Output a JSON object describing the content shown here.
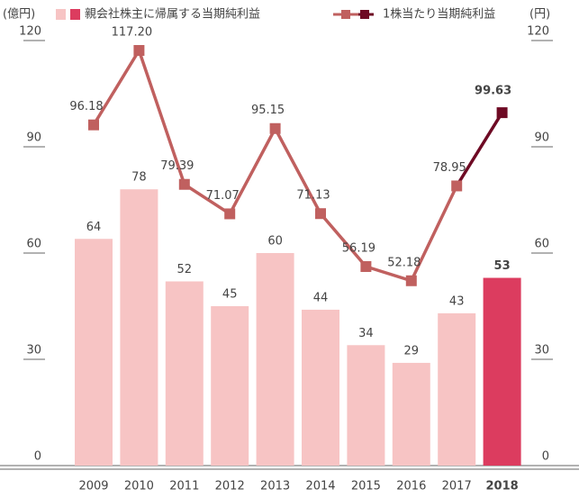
{
  "chart_data": {
    "type": "bar-line",
    "legend_unit_left": "(億円)",
    "legend_unit_right": "(円)",
    "categories": [
      "2009",
      "2010",
      "2011",
      "2012",
      "2013",
      "2014",
      "2015",
      "2016",
      "2017",
      "2018"
    ],
    "series": [
      {
        "name": "親会社株主に帰属する当期純利益",
        "type": "bar",
        "color": "#f7c4c4",
        "highlight_color": "#dc3c5f",
        "values": [
          64,
          78,
          52,
          45,
          60,
          44,
          34,
          29,
          43,
          53
        ]
      },
      {
        "name": "1株当たり当期純利益",
        "type": "line",
        "axis": "y2",
        "color": "#c0605f",
        "highlight_color": "#6e0a24",
        "values": [
          96.18,
          117.2,
          79.39,
          71.07,
          95.15,
          71.13,
          56.19,
          52.18,
          78.95,
          99.63
        ],
        "value_labels": [
          "96.18",
          "117.20",
          "79.39",
          "71.07",
          "95.15",
          "71.13",
          "56.19",
          "52.18",
          "78.95",
          "99.63"
        ]
      }
    ],
    "ylim": [
      0,
      120
    ],
    "yticks": [
      0,
      30,
      60,
      90,
      120
    ],
    "y2lim": [
      0,
      120
    ],
    "y2ticks": [
      0,
      30,
      60,
      90,
      120
    ]
  }
}
